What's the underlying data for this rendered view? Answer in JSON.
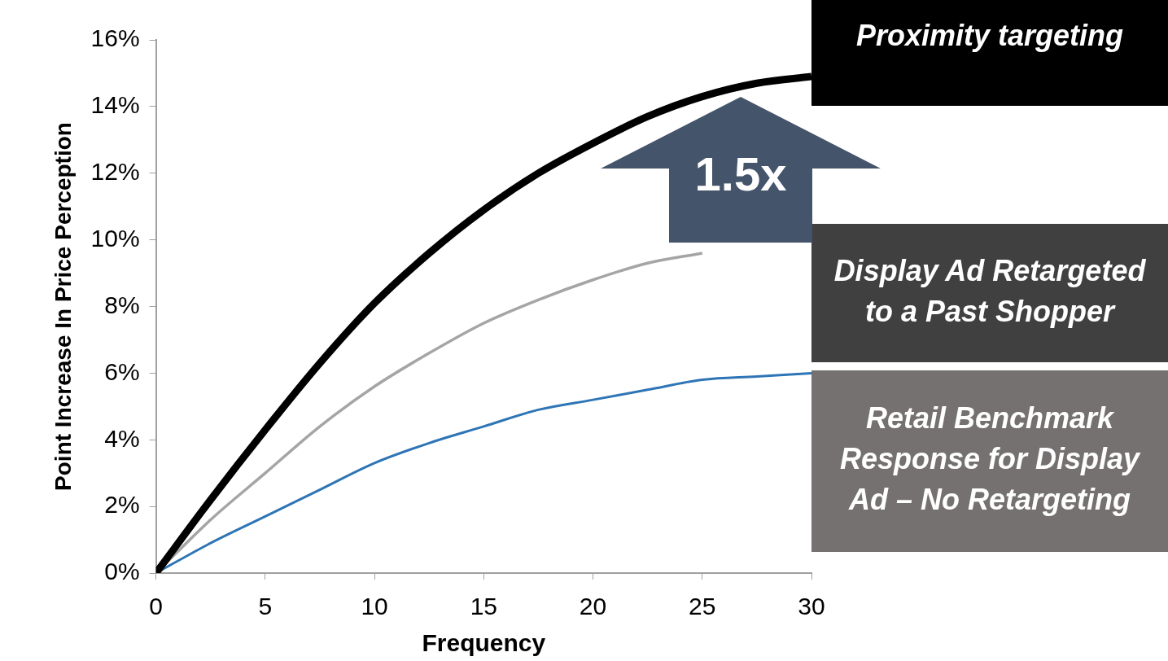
{
  "chart_data": {
    "type": "line",
    "xlabel": "Frequency",
    "ylabel": "Point Increase In Price Perception",
    "x": [
      0,
      2.5,
      5,
      7.5,
      10,
      12.5,
      15,
      17.5,
      20,
      22.5,
      25,
      27.5,
      30
    ],
    "series": [
      {
        "name": "Proximity targeting",
        "color": "#000000",
        "values": [
          0,
          2.2,
          4.3,
          6.3,
          8.1,
          9.6,
          10.9,
          12.0,
          12.9,
          13.7,
          14.3,
          14.7,
          14.9
        ]
      },
      {
        "name": "Display Ad Retargeted to a Past Shopper",
        "color": "#a5a5a5",
        "values": [
          0,
          1.6,
          3.0,
          4.4,
          5.6,
          6.6,
          7.5,
          8.2,
          8.8,
          9.3,
          9.6,
          null,
          null
        ]
      },
      {
        "name": "Retail Benchmark Response for Display Ad – No Retargeting",
        "color": "#2e75b6",
        "values": [
          0,
          0.9,
          1.7,
          2.5,
          3.3,
          3.9,
          4.4,
          4.9,
          5.2,
          5.5,
          5.8,
          5.9,
          6.0
        ]
      }
    ],
    "xlim": [
      0,
      30
    ],
    "xticks": [
      0,
      5,
      10,
      15,
      20,
      25,
      30
    ],
    "ylim": [
      0,
      16
    ],
    "yticks": [
      {
        "value": 0,
        "label": "0%"
      },
      {
        "value": 2,
        "label": "2%"
      },
      {
        "value": 4,
        "label": "4%"
      },
      {
        "value": 6,
        "label": "6%"
      },
      {
        "value": 8,
        "label": "8%"
      },
      {
        "value": 10,
        "label": "10%"
      },
      {
        "value": 12,
        "label": "12%"
      },
      {
        "value": 14,
        "label": "14%"
      },
      {
        "value": 16,
        "label": "16%"
      }
    ],
    "annotations": [
      "1.5x"
    ],
    "grid": false,
    "legend": false,
    "marker": "none",
    "line_style": "solid"
  }
}
